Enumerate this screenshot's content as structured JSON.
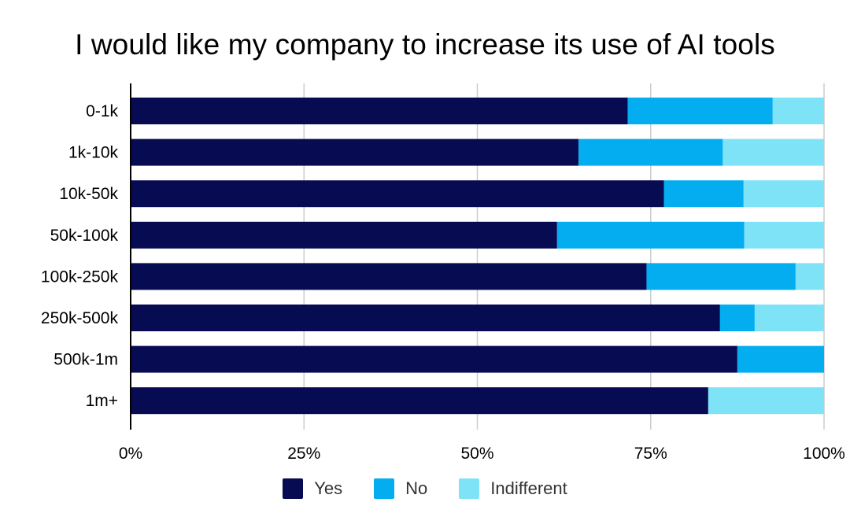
{
  "chart_data": {
    "type": "bar",
    "orientation": "horizontal",
    "stacked": true,
    "title": "I would like my company to increase its use of AI tools",
    "xlabel": "",
    "ylabel": "",
    "xlim": [
      0,
      100
    ],
    "x_ticks": [
      "0%",
      "25%",
      "50%",
      "75%",
      "100%"
    ],
    "grid": true,
    "legend_position": "bottom",
    "categories": [
      "0-1k",
      "1k-10k",
      "10k-50k",
      "50k-100k",
      "100k-250k",
      "250k-500k",
      "500k-1m",
      "1m+"
    ],
    "series": [
      {
        "name": "Yes",
        "color": "#070B52",
        "values": [
          71.7,
          64.6,
          76.9,
          61.5,
          74.4,
          85.0,
          87.5,
          83.3
        ]
      },
      {
        "name": "No",
        "color": "#03ADEF",
        "values": [
          20.9,
          20.8,
          11.5,
          27.0,
          21.5,
          5.0,
          12.5,
          0
        ]
      },
      {
        "name": "Indifferent",
        "color": "#7FE3F8",
        "values": [
          7.4,
          14.6,
          11.6,
          11.5,
          4.1,
          10.0,
          0,
          16.7
        ]
      }
    ]
  }
}
